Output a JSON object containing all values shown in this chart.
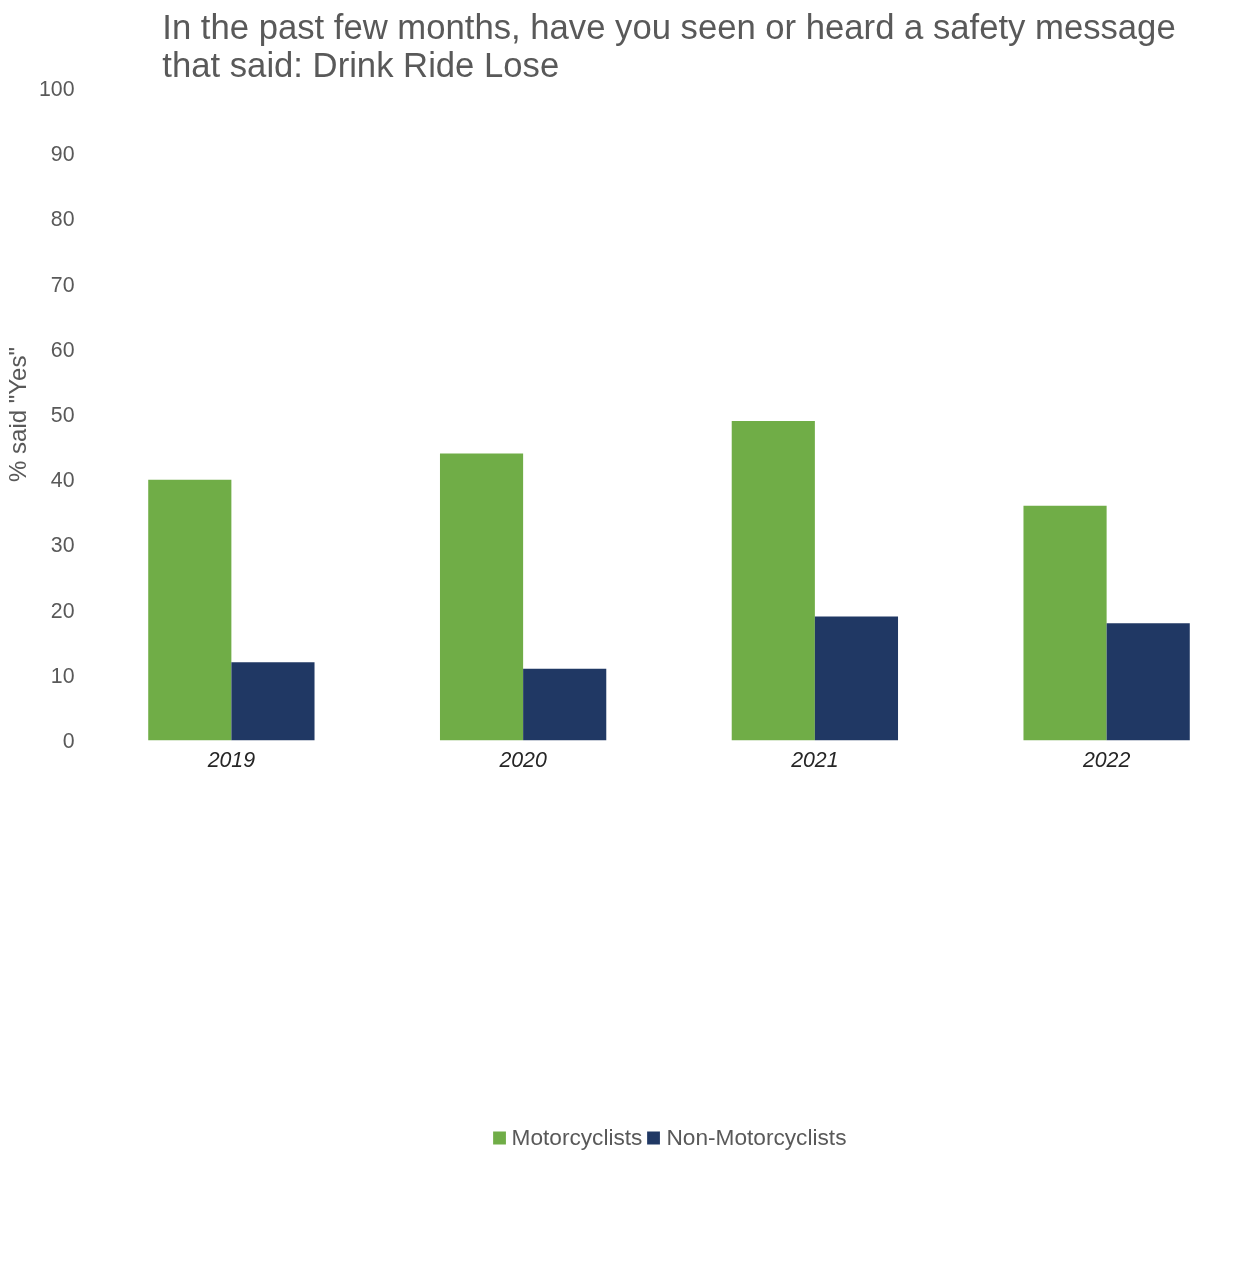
{
  "chart_data": {
    "type": "bar",
    "title": "In the past few months, have you seen or heard a safety message\nthat said: Drink Ride Lose",
    "ylabel": "% said \"Yes\"",
    "categories": [
      "2019",
      "2020",
      "2021",
      "2022"
    ],
    "series": [
      {
        "name": "Motorcyclists",
        "color": "#70ad47",
        "values": [
          40,
          44,
          49,
          36
        ]
      },
      {
        "name": "Non-Motorcyclists",
        "color": "#203864",
        "values": [
          12,
          11,
          19,
          18
        ]
      }
    ],
    "ylim": [
      0,
      100
    ],
    "yticks": [
      0,
      10,
      20,
      30,
      40,
      50,
      60,
      70,
      80,
      90,
      100
    ],
    "grid": false,
    "legend": "bottom"
  }
}
